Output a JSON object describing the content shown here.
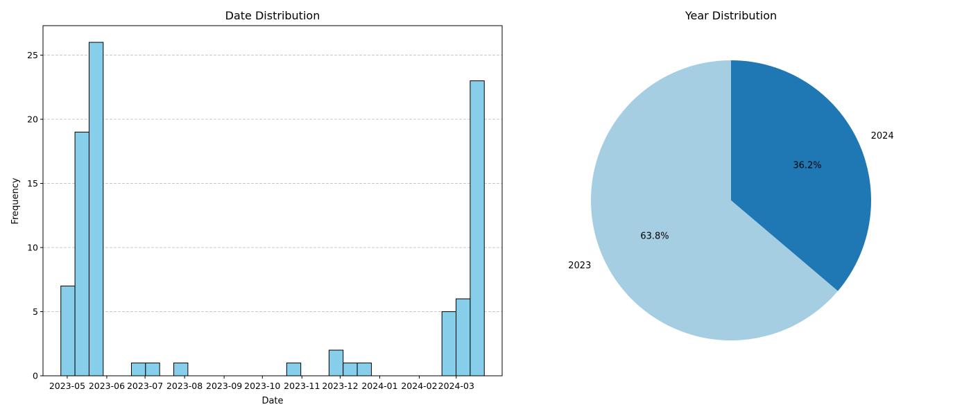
{
  "chart_data": [
    {
      "type": "bar",
      "title": "Date Distribution",
      "xlabel": "Date",
      "ylabel": "Frequency",
      "ylim": [
        0,
        27.3
      ],
      "yticks": [
        0,
        5,
        10,
        15,
        20,
        25
      ],
      "xticks": [
        "2023-05",
        "2023-06",
        "2023-07",
        "2023-08",
        "2023-09",
        "2023-10",
        "2023-11",
        "2023-12",
        "2024-01",
        "2024-02",
        "2024-03"
      ],
      "grid": "y-dashed",
      "bar_color": "#87ceeb",
      "edge_color": "#000000",
      "grid_color": "#c8c8c8",
      "bins_start": "2023-04-26",
      "bins_end": "2024-03-23",
      "values": [
        7,
        19,
        26,
        0,
        0,
        1,
        1,
        0,
        1,
        0,
        0,
        0,
        0,
        0,
        0,
        0,
        1,
        0,
        0,
        2,
        1,
        1,
        0,
        0,
        0,
        0,
        0,
        5,
        6,
        23
      ]
    },
    {
      "type": "pie",
      "title": "Year Distribution",
      "labels": [
        "2024",
        "2023"
      ],
      "values": [
        36.2,
        63.8
      ],
      "autopct": [
        "36.2%",
        "63.8%"
      ],
      "colors": [
        "#1f78b4",
        "#a6cee3"
      ],
      "start_angle_deg": 90,
      "direction": "clockwise"
    }
  ]
}
